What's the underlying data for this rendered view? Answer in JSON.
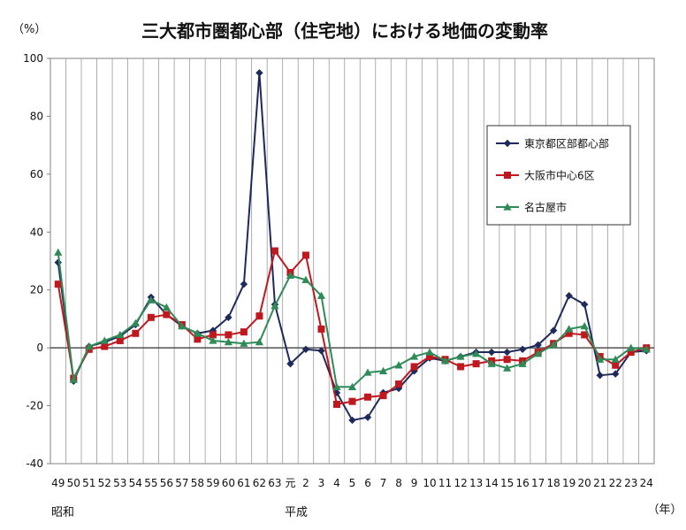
{
  "chart_data": {
    "type": "line",
    "title": "三大都市圏都心部（住宅地）における地価の変動率",
    "ylabel": "（%）",
    "xunit": "（年）",
    "era_labels": [
      "昭和",
      "平成"
    ],
    "ylim": [
      -40,
      100
    ],
    "yticks": [
      -40,
      -20,
      0,
      20,
      40,
      60,
      80,
      100
    ],
    "grid": true,
    "legend_position": "right",
    "categories": [
      "49",
      "50",
      "51",
      "52",
      "53",
      "54",
      "55",
      "56",
      "57",
      "58",
      "59",
      "60",
      "61",
      "62",
      "63",
      "元",
      "2",
      "3",
      "4",
      "5",
      "6",
      "7",
      "8",
      "9",
      "10",
      "11",
      "12",
      "13",
      "14",
      "15",
      "16",
      "17",
      "18",
      "19",
      "20",
      "21",
      "22",
      "23",
      "24"
    ],
    "series": [
      {
        "name": "東京都区部都心部",
        "color": "#1f2a5c",
        "marker": "diamond",
        "values": [
          29.5,
          -11.5,
          0.5,
          2,
          4,
          8,
          17.5,
          11.5,
          7.5,
          5,
          6,
          10.5,
          22,
          95,
          15,
          -5.5,
          -0.5,
          -1,
          -15.5,
          -25,
          -24,
          -15.5,
          -14,
          -8,
          -3.5,
          -4.5,
          -3,
          -1.5,
          -1.5,
          -1.5,
          -0.5,
          1,
          6,
          18,
          15,
          -9.5,
          -9,
          -1.5,
          -1
        ]
      },
      {
        "name": "大阪市中心6区",
        "color": "#c0181f",
        "marker": "square",
        "values": [
          22,
          -10.5,
          -0.5,
          0.5,
          2.5,
          5,
          10.5,
          11.5,
          8,
          3,
          4.5,
          4.5,
          5.5,
          11,
          33.5,
          26,
          32,
          6.5,
          -19.5,
          -18.5,
          -17,
          -16.5,
          -12.5,
          -6.5,
          -3,
          -4,
          -6.5,
          -5.5,
          -4.5,
          -4,
          -4.5,
          -1.5,
          1.5,
          5,
          4.5,
          -3,
          -6,
          -1.5,
          0
        ]
      },
      {
        "name": "名古屋市",
        "color": "#2e8b57",
        "marker": "triangle",
        "values": [
          33,
          -11,
          0.5,
          2.5,
          4.5,
          8.5,
          16.5,
          14,
          7.5,
          5,
          2.5,
          2,
          1.5,
          2,
          14.5,
          25,
          23.5,
          18,
          -13.5,
          -13.5,
          -8.5,
          -8,
          -6,
          -3,
          -1.5,
          -4.5,
          -3,
          -2,
          -5.5,
          -7,
          -5.5,
          -2,
          1,
          6.5,
          7.5,
          -4,
          -4,
          0,
          -0.5
        ]
      }
    ]
  }
}
